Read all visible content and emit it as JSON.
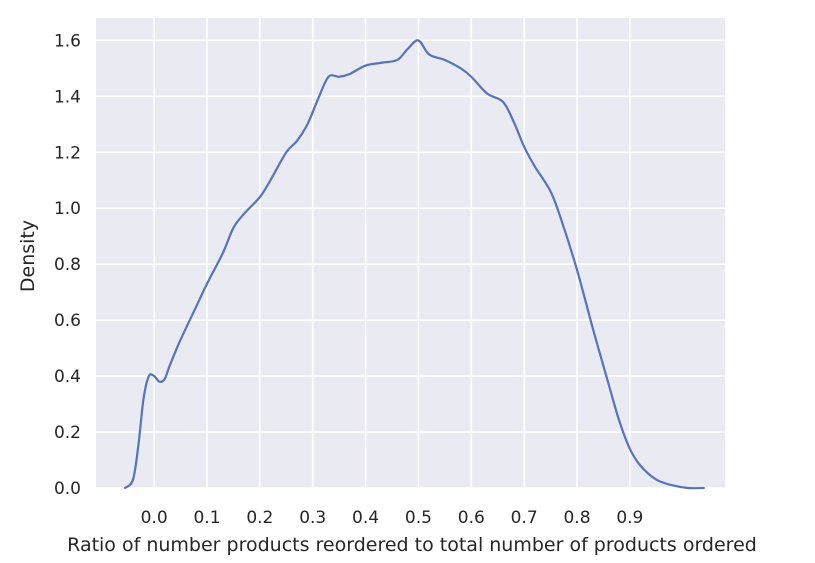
{
  "chart_data": {
    "type": "line",
    "title": "",
    "xlabel": "Ratio of number products reordered to total number of products ordered",
    "ylabel": "Density",
    "xlim": [
      -0.11,
      1.08
    ],
    "ylim": [
      0,
      1.68
    ],
    "x_ticks": [
      "0.0",
      "0.1",
      "0.2",
      "0.3",
      "0.4",
      "0.5",
      "0.6",
      "0.7",
      "0.8",
      "0.9"
    ],
    "y_ticks": [
      "0.0",
      "0.2",
      "0.4",
      "0.6",
      "0.8",
      "1.0",
      "1.2",
      "1.4",
      "1.6"
    ],
    "grid": true,
    "background_color": "#eaeaf2",
    "grid_color": "#ffffff",
    "series": [
      {
        "color": "#5874b8",
        "x": [
          -0.055,
          -0.04,
          -0.03,
          -0.02,
          -0.01,
          0.0,
          0.01,
          0.02,
          0.03,
          0.05,
          0.08,
          0.1,
          0.13,
          0.15,
          0.17,
          0.2,
          0.22,
          0.25,
          0.27,
          0.29,
          0.31,
          0.33,
          0.35,
          0.37,
          0.4,
          0.43,
          0.46,
          0.48,
          0.5,
          0.52,
          0.55,
          0.58,
          0.6,
          0.63,
          0.66,
          0.68,
          0.7,
          0.72,
          0.75,
          0.77,
          0.8,
          0.83,
          0.86,
          0.88,
          0.9,
          0.92,
          0.95,
          0.98,
          1.01,
          1.04
        ],
        "y": [
          0.0,
          0.03,
          0.15,
          0.32,
          0.4,
          0.4,
          0.38,
          0.39,
          0.44,
          0.53,
          0.65,
          0.73,
          0.84,
          0.93,
          0.98,
          1.04,
          1.1,
          1.2,
          1.24,
          1.3,
          1.39,
          1.47,
          1.47,
          1.48,
          1.51,
          1.52,
          1.53,
          1.57,
          1.6,
          1.55,
          1.53,
          1.5,
          1.47,
          1.41,
          1.38,
          1.31,
          1.22,
          1.15,
          1.06,
          0.96,
          0.78,
          0.57,
          0.37,
          0.24,
          0.14,
          0.08,
          0.03,
          0.01,
          0.0,
          0.0
        ]
      }
    ]
  }
}
